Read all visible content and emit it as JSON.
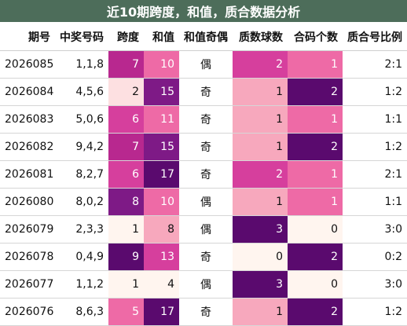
{
  "title": "近10期跨度，和值，质合数据分析",
  "headers": [
    "期号",
    "中奖号码",
    "跨度",
    "和值",
    "和值奇偶",
    "质数球数",
    "合码个数",
    "质合号比例"
  ],
  "colors": {
    "title_bg": "#4d6d5a",
    "deep_purple": "#5a0a6e",
    "purple": "#7e1a86",
    "magenta": "#b8288f",
    "pink": "#d63f9d",
    "hot_pink": "#ee6aa6",
    "light_pink": "#f7a8bd",
    "blush": "#fde0e1",
    "cream": "#fff5ef"
  },
  "rows": [
    {
      "issue": "2026085",
      "numbers": "1,1,8",
      "span": "7",
      "sum": "10",
      "parity": "偶",
      "prime": "2",
      "composite": "1",
      "ratio": "2:1"
    },
    {
      "issue": "2026084",
      "numbers": "4,5,6",
      "span": "2",
      "sum": "15",
      "parity": "奇",
      "prime": "1",
      "composite": "2",
      "ratio": "1:2"
    },
    {
      "issue": "2026083",
      "numbers": "5,0,6",
      "span": "6",
      "sum": "11",
      "parity": "奇",
      "prime": "1",
      "composite": "1",
      "ratio": "1:1"
    },
    {
      "issue": "2026082",
      "numbers": "9,4,2",
      "span": "7",
      "sum": "15",
      "parity": "奇",
      "prime": "1",
      "composite": "2",
      "ratio": "1:2"
    },
    {
      "issue": "2026081",
      "numbers": "8,2,7",
      "span": "6",
      "sum": "17",
      "parity": "奇",
      "prime": "2",
      "composite": "1",
      "ratio": "2:1"
    },
    {
      "issue": "2026080",
      "numbers": "8,0,2",
      "span": "8",
      "sum": "10",
      "parity": "偶",
      "prime": "1",
      "composite": "1",
      "ratio": "1:1"
    },
    {
      "issue": "2026079",
      "numbers": "2,3,3",
      "span": "1",
      "sum": "8",
      "parity": "偶",
      "prime": "3",
      "composite": "0",
      "ratio": "3:0"
    },
    {
      "issue": "2026078",
      "numbers": "0,4,9",
      "span": "9",
      "sum": "13",
      "parity": "奇",
      "prime": "0",
      "composite": "2",
      "ratio": "0:2"
    },
    {
      "issue": "2026077",
      "numbers": "1,1,2",
      "span": "1",
      "sum": "4",
      "parity": "偶",
      "prime": "3",
      "composite": "0",
      "ratio": "3:0"
    },
    {
      "issue": "2026076",
      "numbers": "8,6,3",
      "span": "5",
      "sum": "17",
      "parity": "奇",
      "prime": "1",
      "composite": "2",
      "ratio": "1:2"
    }
  ]
}
